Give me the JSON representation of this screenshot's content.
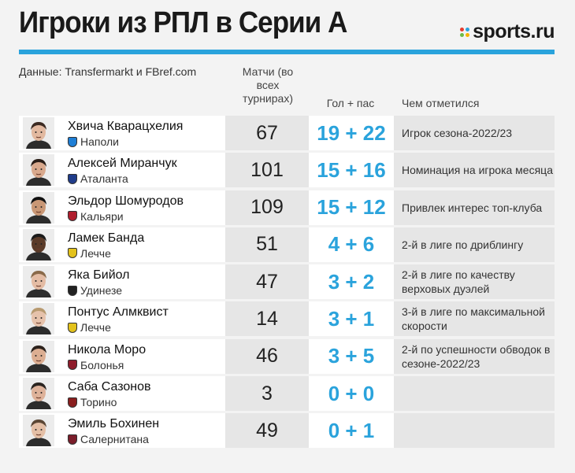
{
  "header": {
    "title": "Игроки из РПЛ в Серии А",
    "logo_text": "sports.ru",
    "logo_dot_colors": [
      "#e63b2e",
      "#2aa3dc",
      "#6dbb45",
      "#f5b400"
    ],
    "accent_color": "#2aa3dc",
    "source": "Данные: Transfermarkt и FBref.com"
  },
  "columns": {
    "matches": "Матчи (во всех турнирах)",
    "goals_assists": "Гол + пас",
    "notable": "Чем отметился"
  },
  "players": [
    {
      "name": "Хвича Кварацхелия",
      "club": "Наполи",
      "club_color": "#1e7fd6",
      "matches": "67",
      "ga": "19 + 22",
      "note": "Игрок сезона-2022/23",
      "skin": "#e2b9a0",
      "hair": "#3b2a22"
    },
    {
      "name": "Алексей Миранчук",
      "club": "Аталанта",
      "club_color": "#1f3c8a",
      "matches": "101",
      "ga": "15 + 16",
      "note": "Номинация на игрока месяца",
      "skin": "#d9a98d",
      "hair": "#2a1e18"
    },
    {
      "name": "Эльдор Шомуродов",
      "club": "Кальяри",
      "club_color": "#b01e2e",
      "matches": "109",
      "ga": "15 + 12",
      "note": "Привлек интерес топ-клуба",
      "skin": "#c99775",
      "hair": "#111111"
    },
    {
      "name": "Ламек Банда",
      "club": "Лечче",
      "club_color": "#e3c21c",
      "matches": "51",
      "ga": "4 + 6",
      "note": "2-й в лиге по дриблингу",
      "skin": "#5a3a28",
      "hair": "#1a1a1a"
    },
    {
      "name": "Яка Бийол",
      "club": "Удинезе",
      "club_color": "#222222",
      "matches": "47",
      "ga": "3 + 2",
      "note": "2-й в лиге по качеству верховых дуэлей",
      "skin": "#e4bca4",
      "hair": "#8a6a4a"
    },
    {
      "name": "Понтус Алмквист",
      "club": "Лечче",
      "club_color": "#e3c21c",
      "matches": "14",
      "ga": "3 + 1",
      "note": "3-й в лиге по максимальной скорости",
      "skin": "#e6c2ab",
      "hair": "#b89a70"
    },
    {
      "name": "Никола Моро",
      "club": "Болонья",
      "club_color": "#8f1c2b",
      "matches": "46",
      "ga": "3 + 5",
      "note": "2-й по успешности обводок в сезоне-2022/23",
      "skin": "#dcae92",
      "hair": "#2b211b"
    },
    {
      "name": "Саба Сазонов",
      "club": "Торино",
      "club_color": "#8a1f1f",
      "matches": "3",
      "ga": "0 + 0",
      "note": "",
      "skin": "#deb29a",
      "hair": "#2a2420"
    },
    {
      "name": "Эмиль Бохинен",
      "club": "Салернитана",
      "club_color": "#7b1e2b",
      "matches": "49",
      "ga": "0 + 1",
      "note": "",
      "skin": "#e4bfa6",
      "hair": "#5b4634"
    }
  ]
}
